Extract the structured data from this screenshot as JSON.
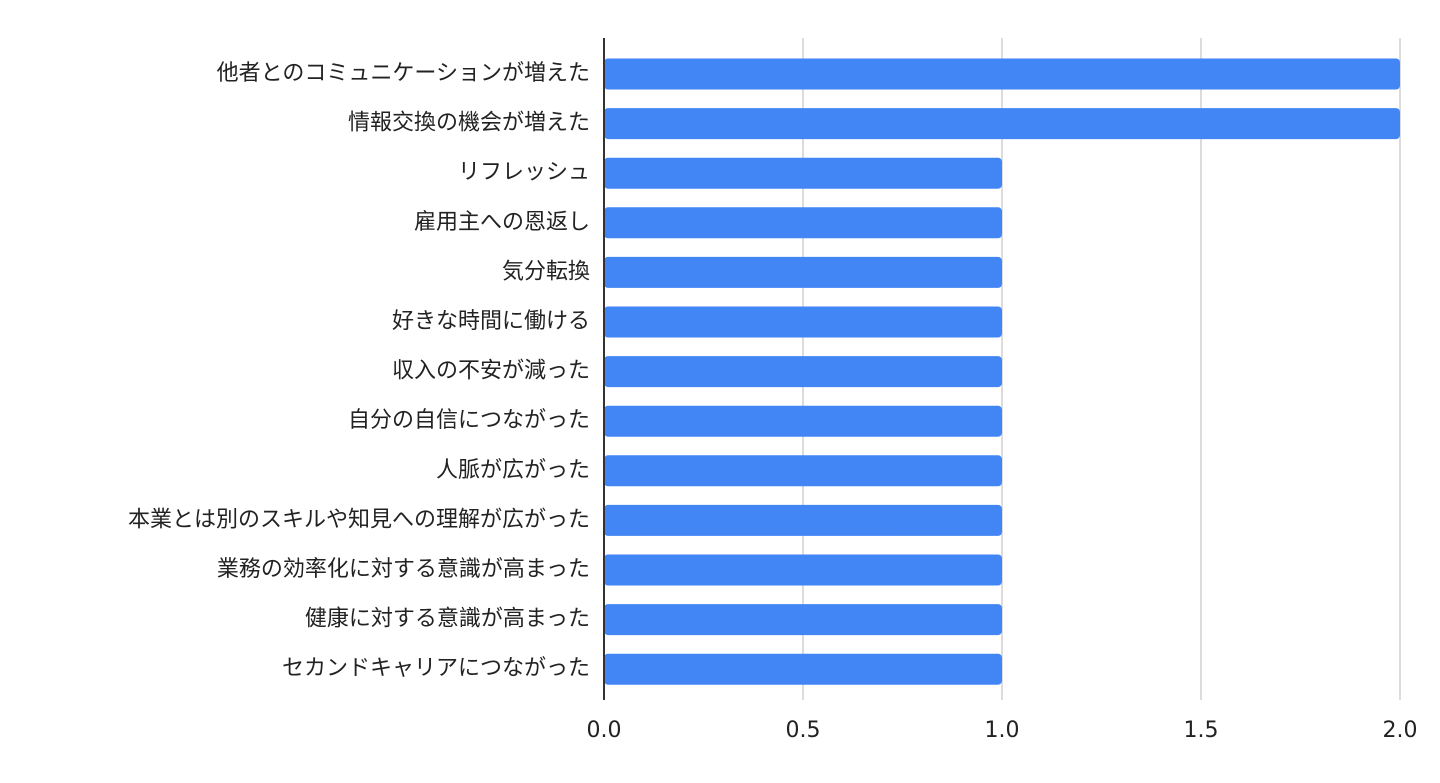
{
  "chart_data": {
    "type": "bar",
    "orientation": "horizontal",
    "title": "",
    "xlabel": "",
    "ylabel": "",
    "categories": [
      "他者とのコミュニケーションが増えた",
      "情報交換の機会が増えた",
      "リフレッシュ",
      "雇用主への恩返し",
      "気分転換",
      "好きな時間に働ける",
      "収入の不安が減った",
      "自分の自信につながった",
      "人脈が広がった",
      "本業とは別のスキルや知見への理解が広がった",
      "業務の効率化に対する意識が高まった",
      "健康に対する意識が高まった",
      "セカンドキャリアにつながった"
    ],
    "values": [
      2,
      2,
      1,
      1,
      1,
      1,
      1,
      1,
      1,
      1,
      1,
      1,
      1
    ],
    "xlim": [
      0,
      2
    ],
    "x_ticks": [
      "0.0",
      "0.5",
      "1.0",
      "1.5",
      "2.0"
    ],
    "grid": true,
    "legend": "none",
    "bar_color": "#4285f4",
    "grid_color": "#d0d0d0"
  }
}
